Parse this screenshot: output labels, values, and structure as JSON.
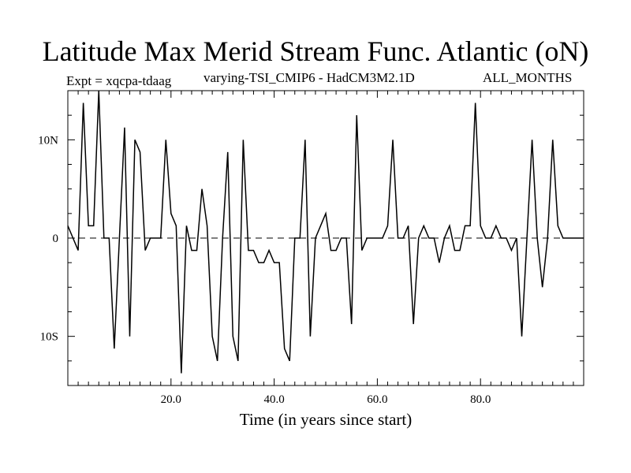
{
  "header": {
    "title": "Latitude Max Merid Stream Func. Atlantic (oN)",
    "expt": "Expt = xqcpa-tdaag",
    "subtitle": "varying-TSI_CMIP6 - HadCM3M2.1D",
    "months": "ALL_MONTHS"
  },
  "chart_data": {
    "type": "line",
    "title": "Latitude Max Merid Stream Func. Atlantic (oN)",
    "xlabel": "Time (in years since start)",
    "ylabel": "",
    "xlim": [
      0,
      100
    ],
    "ylim": [
      -15,
      15
    ],
    "grid": false,
    "zero_line": "dashed",
    "x_ticks": [
      {
        "value": 20,
        "label": "20.0"
      },
      {
        "value": 40,
        "label": "40.0"
      },
      {
        "value": 60,
        "label": "60.0"
      },
      {
        "value": 80,
        "label": "80.0"
      }
    ],
    "y_ticks": [
      {
        "value": 10,
        "label": "10N"
      },
      {
        "value": 0,
        "label": "0"
      },
      {
        "value": -10,
        "label": "10S"
      }
    ],
    "series": [
      {
        "x": [
          0,
          1,
          2,
          3,
          4,
          5,
          6,
          7,
          8,
          9,
          10,
          11,
          12,
          13,
          14,
          15,
          16,
          17,
          18,
          19,
          20,
          21,
          22,
          23,
          24,
          25,
          26,
          27,
          28,
          29,
          30,
          31,
          32,
          33,
          34,
          35,
          36,
          37,
          38,
          39,
          40,
          41,
          42,
          43,
          44,
          45,
          46,
          47,
          48,
          49,
          50,
          51,
          52,
          53,
          54,
          55,
          56,
          57,
          58,
          59,
          60,
          61,
          62,
          63,
          64,
          65,
          66,
          67,
          68,
          69,
          70,
          71,
          72,
          73,
          74,
          75,
          76,
          77,
          78,
          79,
          80,
          81,
          82,
          83,
          84,
          85,
          86,
          87,
          88,
          89,
          90,
          91,
          92,
          93,
          94,
          95,
          96,
          97,
          98,
          99,
          100
        ],
        "values": [
          1.25,
          0,
          -1.25,
          13.75,
          1.25,
          1.25,
          15,
          0,
          0,
          -11.25,
          0,
          11.25,
          -10,
          10,
          8.75,
          -1.25,
          0,
          0,
          0,
          10,
          2.5,
          1.25,
          -13.75,
          1.25,
          -1.25,
          -1.25,
          5,
          1.25,
          -10,
          -12.5,
          0,
          8.75,
          -10,
          -12.5,
          10,
          -1.25,
          -1.25,
          -2.5,
          -2.5,
          -1.25,
          -2.5,
          -2.5,
          -11.25,
          -12.5,
          0,
          0,
          10,
          -10,
          0,
          1.25,
          2.5,
          -1.25,
          -1.25,
          0,
          0,
          -8.75,
          12.5,
          -1.25,
          0,
          0,
          0,
          0,
          1.25,
          10,
          0,
          0,
          1.25,
          -8.75,
          0,
          1.25,
          0,
          0,
          -2.5,
          0,
          1.25,
          -1.25,
          -1.25,
          1.25,
          1.25,
          13.75,
          1.25,
          0,
          0,
          1.25,
          0,
          0,
          -1.25,
          0,
          -10,
          0,
          10,
          0,
          -5,
          0,
          10,
          1.25,
          0,
          0,
          0,
          0,
          0
        ]
      }
    ]
  }
}
